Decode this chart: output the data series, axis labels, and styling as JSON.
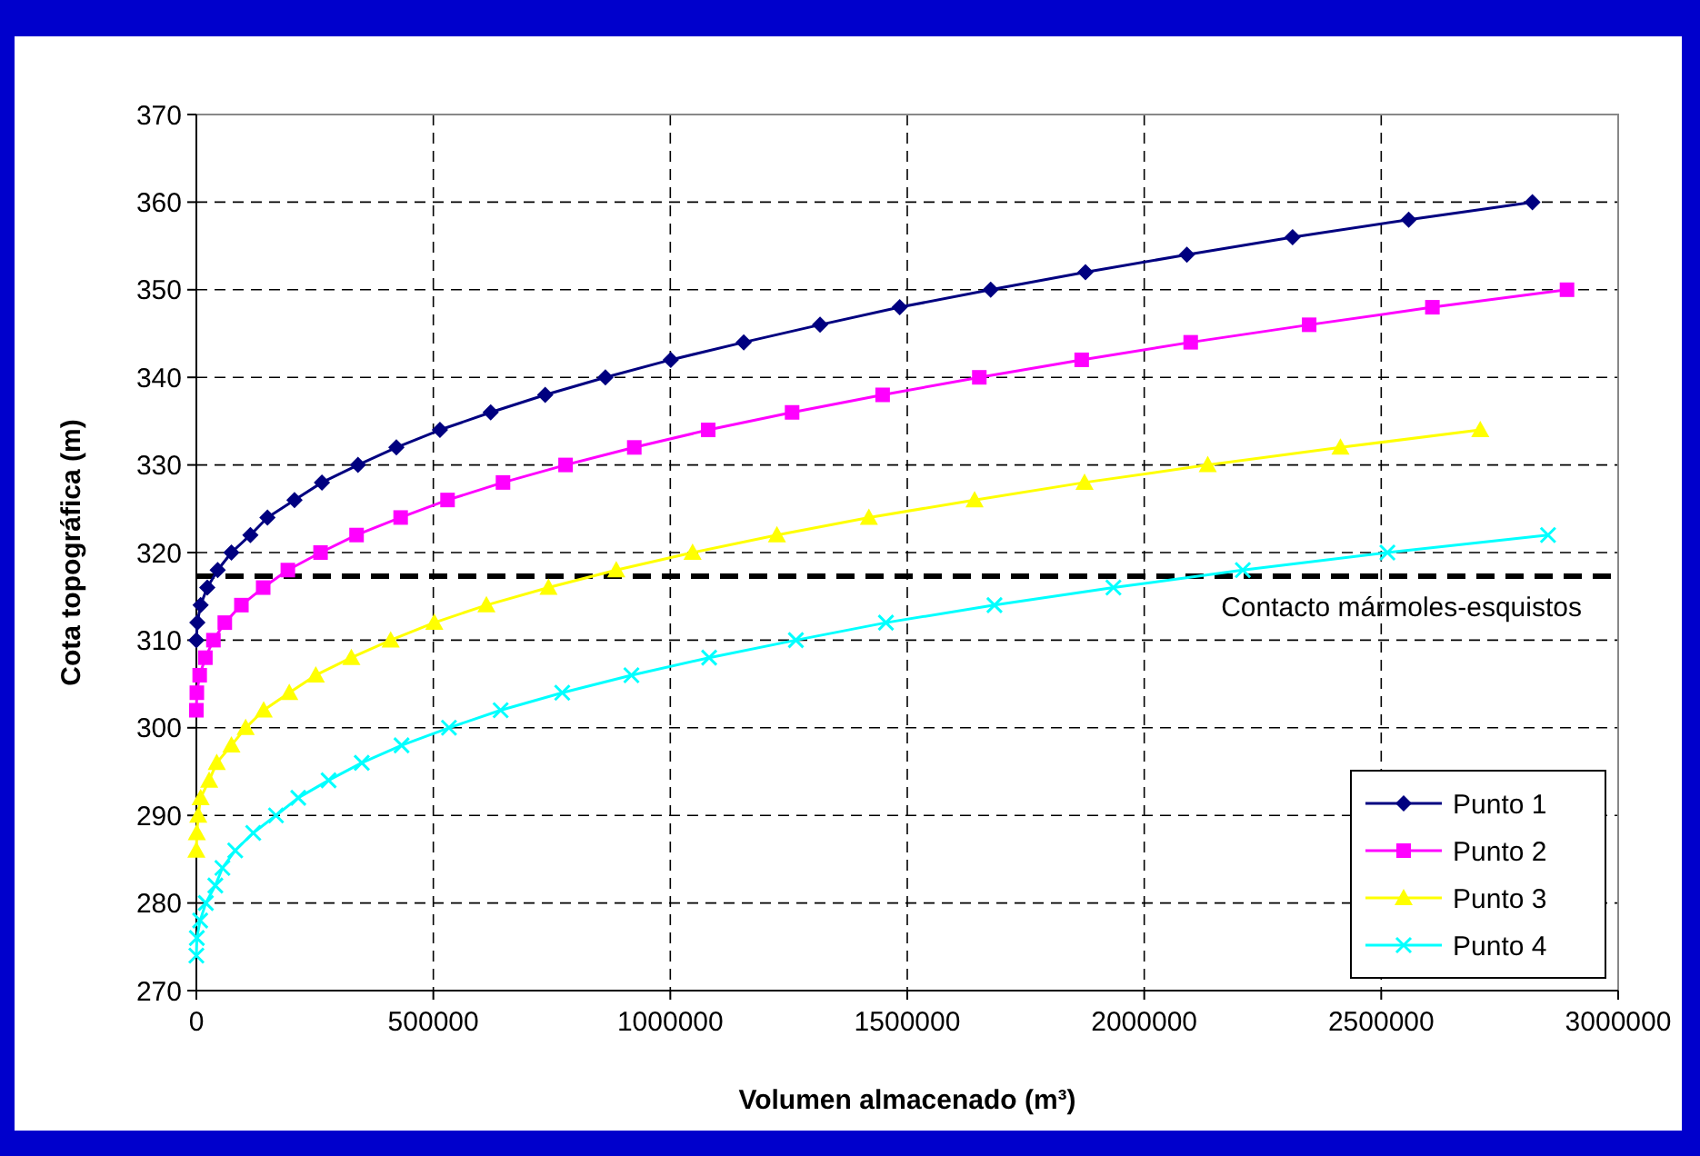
{
  "chart_data": {
    "type": "line",
    "xlabel": "Volumen almacenado (m³)",
    "ylabel": "Cota topográfica (m)",
    "xlim": [
      0,
      3000000
    ],
    "xticks": [
      0,
      500000,
      1000000,
      1500000,
      2000000,
      2500000,
      3000000
    ],
    "ylim": [
      270,
      370
    ],
    "yticks": [
      270,
      280,
      290,
      300,
      310,
      320,
      330,
      340,
      350,
      360,
      370
    ],
    "grid": true,
    "legend": "bottom right",
    "series": [
      {
        "name": "Punto 1",
        "color": "#000080",
        "marker": "diamond",
        "x": [
          0,
          2000,
          9000,
          23000,
          45000,
          74000,
          114000,
          150000,
          207000,
          265000,
          341000,
          422000,
          514000,
          621000,
          736000,
          863000,
          1001000,
          1155000,
          1316000,
          1484000,
          1676000,
          1876000,
          2090000,
          2313000,
          2558000,
          2819000
        ],
        "values": [
          310,
          312,
          314,
          316,
          318,
          320,
          322,
          324,
          326,
          328,
          330,
          332,
          334,
          336,
          338,
          340,
          342,
          344,
          346,
          348,
          350,
          352,
          354,
          356,
          358,
          360
        ]
      },
      {
        "name": "Punto 2",
        "color": "#ff00ff",
        "marker": "square",
        "x": [
          0,
          1000,
          7000,
          19000,
          36000,
          60000,
          95000,
          141000,
          193000,
          262000,
          338000,
          431000,
          530000,
          647000,
          779000,
          924000,
          1080000,
          1257000,
          1448000,
          1652000,
          1868000,
          2098000,
          2348000,
          2608000,
          2892000
        ],
        "values": [
          302,
          304,
          306,
          308,
          310,
          312,
          314,
          316,
          318,
          320,
          322,
          324,
          326,
          328,
          330,
          332,
          334,
          336,
          338,
          340,
          342,
          344,
          346,
          348,
          350
        ]
      },
      {
        "name": "Punto 3",
        "color": "#ffff00",
        "marker": "triangle",
        "x": [
          0,
          1000,
          4000,
          9000,
          27000,
          43000,
          74000,
          104000,
          142000,
          196000,
          252000,
          327000,
          410000,
          502000,
          612000,
          743000,
          886000,
          1047000,
          1225000,
          1419000,
          1642000,
          1874000,
          2134000,
          2414000,
          2709000
        ],
        "values": [
          286,
          288,
          290,
          292,
          294,
          296,
          298,
          300,
          302,
          304,
          306,
          308,
          310,
          312,
          314,
          316,
          318,
          320,
          322,
          324,
          326,
          328,
          330,
          332,
          334
        ]
      },
      {
        "name": "Punto 4",
        "color": "#00ffff",
        "marker": "cross",
        "x": [
          0,
          1000,
          8000,
          20000,
          40000,
          55000,
          82000,
          120000,
          168000,
          215000,
          279000,
          349000,
          433000,
          533000,
          642000,
          772000,
          918000,
          1082000,
          1265000,
          1455000,
          1684000,
          1935000,
          2208000,
          2513000,
          2852000
        ],
        "values": [
          274,
          276,
          278,
          280,
          282,
          284,
          286,
          288,
          290,
          292,
          294,
          296,
          298,
          300,
          302,
          304,
          306,
          308,
          310,
          312,
          314,
          316,
          318,
          320,
          322
        ]
      }
    ],
    "ref_lines": [
      {
        "axis": "y",
        "value": 317.3,
        "label": "Contacto mármoles-esquistos",
        "color": "#000000",
        "line_style": "dashed"
      }
    ]
  }
}
